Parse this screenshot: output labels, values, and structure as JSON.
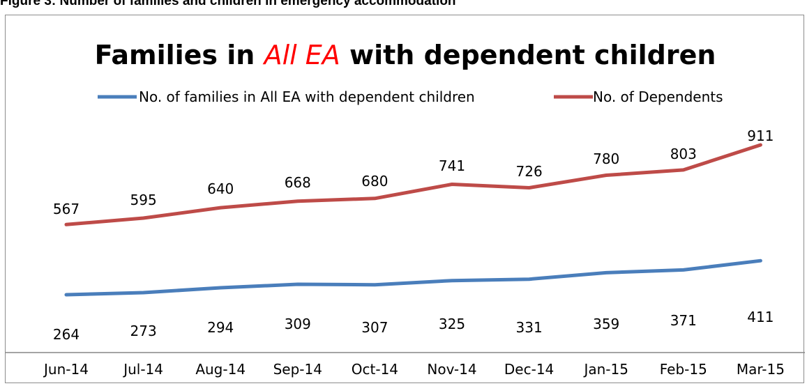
{
  "caption": "Figure 3: Number of families and children in emergency accommodation",
  "chart_data": {
    "type": "line",
    "title_parts": [
      "Families in ",
      "All EA",
      " with dependent children"
    ],
    "categories": [
      "Jun-14",
      "Jul-14",
      "Aug-14",
      "Sep-14",
      "Oct-14",
      "Nov-14",
      "Dec-14",
      "Jan-15",
      "Feb-15",
      "Mar-15"
    ],
    "series": [
      {
        "name": "No. of families in All EA with dependent children",
        "color": "#4a7ebb",
        "values": [
          264,
          273,
          294,
          309,
          307,
          325,
          331,
          359,
          371,
          411
        ]
      },
      {
        "name": "No. of Dependents",
        "color": "#be4b48",
        "values": [
          567,
          595,
          640,
          668,
          680,
          741,
          726,
          780,
          803,
          911
        ]
      }
    ],
    "legend_position": "top",
    "grid": false,
    "title_emphasis_color": "#ff0000"
  }
}
